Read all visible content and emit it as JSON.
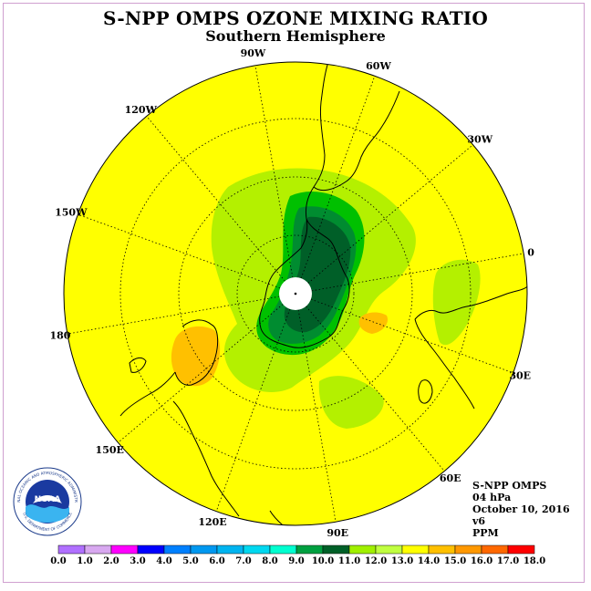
{
  "header": {
    "title": "S-NPP OMPS OZONE MIXING RATIO",
    "subtitle": "Southern Hemisphere"
  },
  "map": {
    "projection": "polar-stereographic-south",
    "longitude_labels": [
      "90W",
      "60W",
      "30W",
      "0",
      "30E",
      "60E",
      "90E",
      "120E",
      "150E",
      "180",
      "150W",
      "120W"
    ],
    "colors": {
      "background": "#ffff00",
      "light_green": "#b4f000",
      "mid_green": "#00c000",
      "green": "#008c30",
      "dark_green": "#005f28",
      "orange": "#ffc000",
      "pole_mask": "#ffffff"
    }
  },
  "info": {
    "instrument": "S-NPP OMPS",
    "level": "04 hPa",
    "date": "October 10, 2016",
    "version": "v6",
    "units": "PPM"
  },
  "legend": {
    "labels": [
      "0.0",
      "1.0",
      "2.0",
      "3.0",
      "4.0",
      "5.0",
      "6.0",
      "7.0",
      "8.0",
      "9.0",
      "10.0",
      "11.0",
      "12.0",
      "13.0",
      "14.0",
      "15.0",
      "16.0",
      "17.0",
      "18.0"
    ],
    "colors": [
      "#b070ff",
      "#d8a8f0",
      "#ff00ff",
      "#0000ff",
      "#0080ff",
      "#0098f0",
      "#00b4f0",
      "#00d8f0",
      "#00ffd0",
      "#00a040",
      "#006028",
      "#a0f000",
      "#c0ff40",
      "#ffff00",
      "#ffc000",
      "#ff9800",
      "#ff6800",
      "#ff0000",
      "#a04820"
    ]
  },
  "logo": {
    "text": "NOAA",
    "ring_text": "NATIONAL OCEANIC AND ATMOSPHERIC ADMINISTRATION",
    "ring_text_bottom": "U.S. DEPARTMENT OF COMMERCE"
  }
}
